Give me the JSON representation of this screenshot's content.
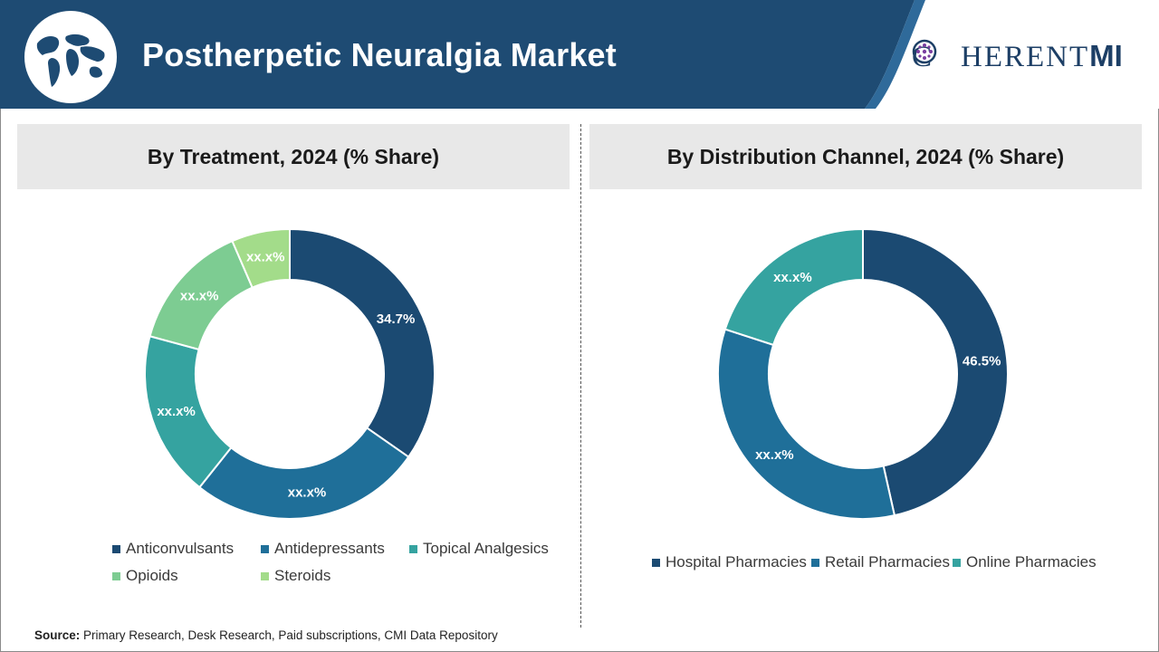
{
  "header": {
    "title": "Postherpetic Neuralgia Market",
    "logo": {
      "text": "C",
      "rest": "HERENT",
      "mi": "MI"
    },
    "colors": {
      "banner": "#1e4b73",
      "accent": "#24598a"
    }
  },
  "source": {
    "label": "Source:",
    "text": "Primary Research, Desk Research, Paid subscriptions, CMI Data Repository"
  },
  "chart_data": [
    {
      "type": "pie",
      "donut": true,
      "title": "By Treatment, 2024 (% Share)",
      "categories": [
        "Anticonvulsants",
        "Antidepressants",
        "Topical Analgesics",
        "Opioids",
        "Steroids"
      ],
      "values": [
        34.7,
        26.0,
        18.5,
        14.3,
        6.5
      ],
      "data_labels": [
        "34.7%",
        "xx.x%",
        "xx.x%",
        "xx.x%",
        "xx.x%"
      ],
      "colors": [
        "#1b4a72",
        "#1f6f99",
        "#35a3a0",
        "#7dcc92",
        "#a3dc8a"
      ],
      "legend_position": "bottom"
    },
    {
      "type": "pie",
      "donut": true,
      "title": "By Distribution Channel, 2024 (% Share)",
      "categories": [
        "Hospital Pharmacies",
        "Retail Pharmacies",
        "Online Pharmacies"
      ],
      "values": [
        46.5,
        33.5,
        20.0
      ],
      "data_labels": [
        "46.5%",
        "xx.x%",
        "xx.x%"
      ],
      "colors": [
        "#1b4a72",
        "#1f6f99",
        "#35a3a0"
      ],
      "legend_position": "bottom"
    }
  ]
}
